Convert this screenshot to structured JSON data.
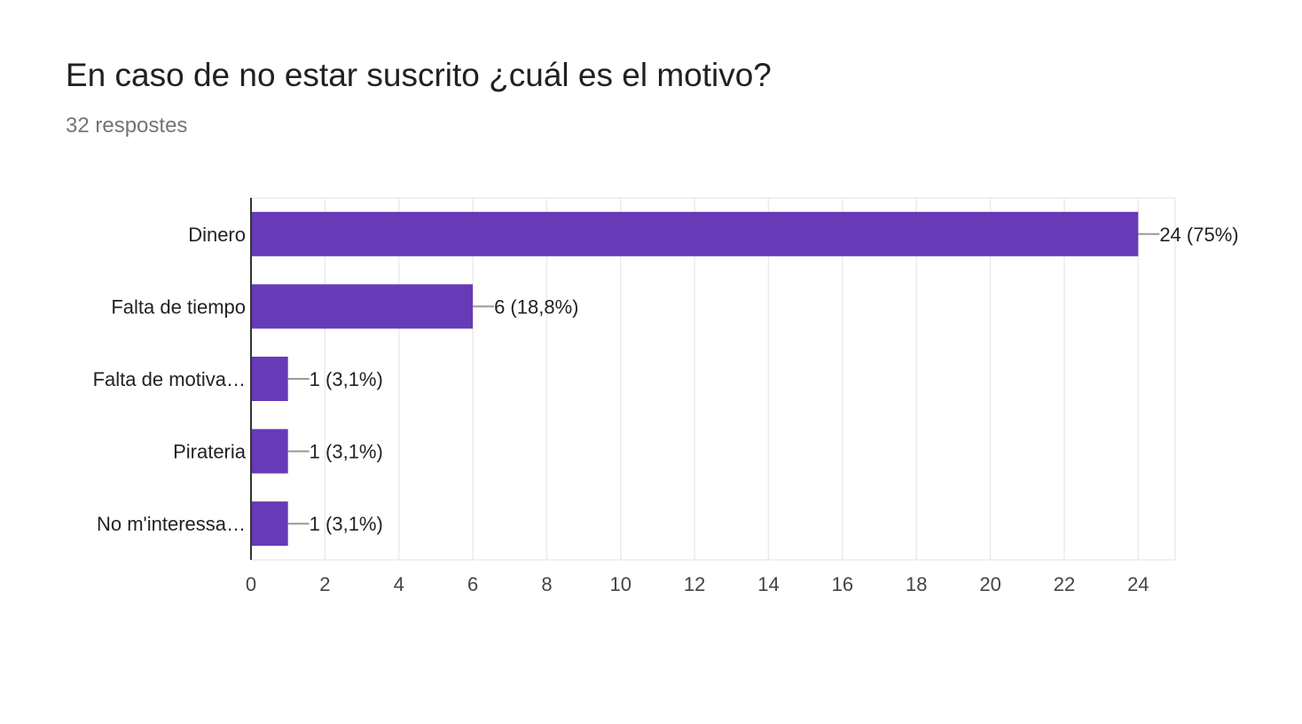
{
  "header": {
    "title": "En caso de no estar suscrito ¿cuál es el motivo?",
    "response_count": "32 respostes"
  },
  "colors": {
    "bar": "#673ab7",
    "grid": "#ebebeb",
    "axis": "#333333",
    "leader": "#999999"
  },
  "chart_data": {
    "type": "bar",
    "orientation": "horizontal",
    "categories": [
      "Dinero",
      "Falta de tiempo",
      "Falta de motiva…",
      "Pirateria",
      "No m'interessa…"
    ],
    "values": [
      24,
      6,
      1,
      1,
      1
    ],
    "data_labels": [
      "24 (75%)",
      "6 (18,8%)",
      "1 (3,1%)",
      "1 (3,1%)",
      "1 (3,1%)"
    ],
    "xlim": [
      0,
      25
    ],
    "xticks": [
      0,
      2,
      4,
      6,
      8,
      10,
      12,
      14,
      16,
      18,
      20,
      22,
      24
    ],
    "grid": true,
    "legend": "none"
  }
}
